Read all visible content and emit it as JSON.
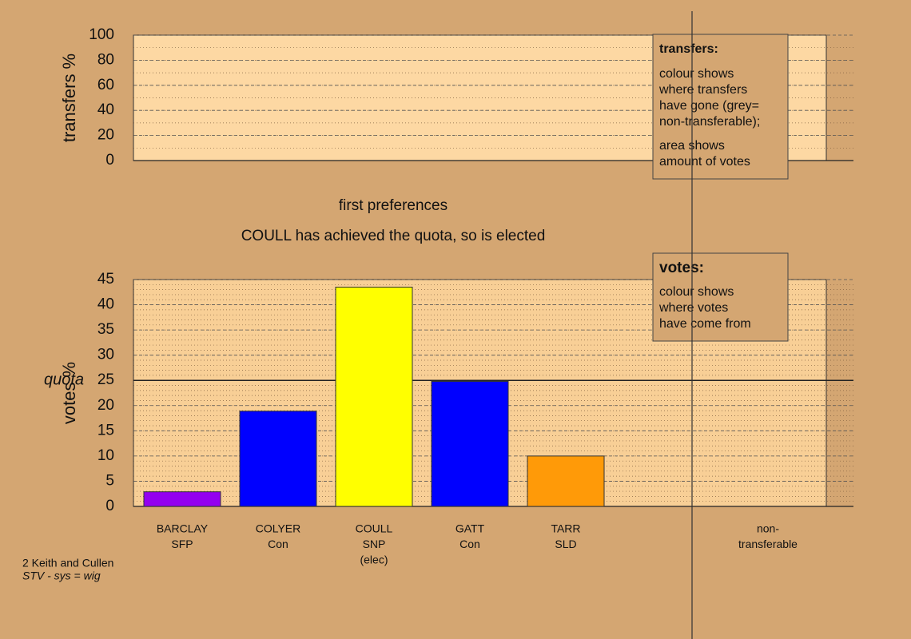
{
  "chart_data": [
    {
      "type": "bar",
      "ylabel": "transfers %",
      "ylim": [
        0,
        100
      ],
      "yticks": [
        0,
        20,
        40,
        60,
        80,
        100
      ],
      "categories": [],
      "values": [],
      "legend": {
        "title": "transfers:",
        "paragraphs": [
          [
            "colour shows",
            "where transfers",
            "have gone (grey=",
            "non-transferable);"
          ],
          [
            "area shows",
            "amount of votes"
          ]
        ]
      }
    },
    {
      "type": "bar",
      "title": "first preferences",
      "subtitle": "COULL has achieved the quota, so is elected",
      "ylabel": "votes %",
      "ylim": [
        0,
        45
      ],
      "yticks": [
        0,
        5,
        10,
        15,
        20,
        25,
        30,
        35,
        40,
        45
      ],
      "categories": [
        [
          "BARCLAY",
          "SFP"
        ],
        [
          "COLYER",
          "Con"
        ],
        [
          "COULL",
          "SNP",
          "(elec)"
        ],
        [
          "GATT",
          "Con"
        ],
        [
          "TARR",
          "SLD"
        ],
        [
          "non-",
          "transferable"
        ]
      ],
      "values": [
        2.9,
        18.9,
        43.5,
        24.8,
        10,
        0
      ],
      "colors": [
        "#9400f0",
        "#0000ff",
        "#ffff00",
        "#0000ff",
        "#ff9a08",
        "#999999"
      ],
      "quota": {
        "value": 25,
        "label": "quota"
      },
      "legend": {
        "title": "votes:",
        "paragraphs": [
          [
            "colour shows",
            "where votes",
            "have come from"
          ]
        ]
      }
    }
  ],
  "footer": [
    "2 Keith and Cullen",
    "STV - sys = wig"
  ]
}
